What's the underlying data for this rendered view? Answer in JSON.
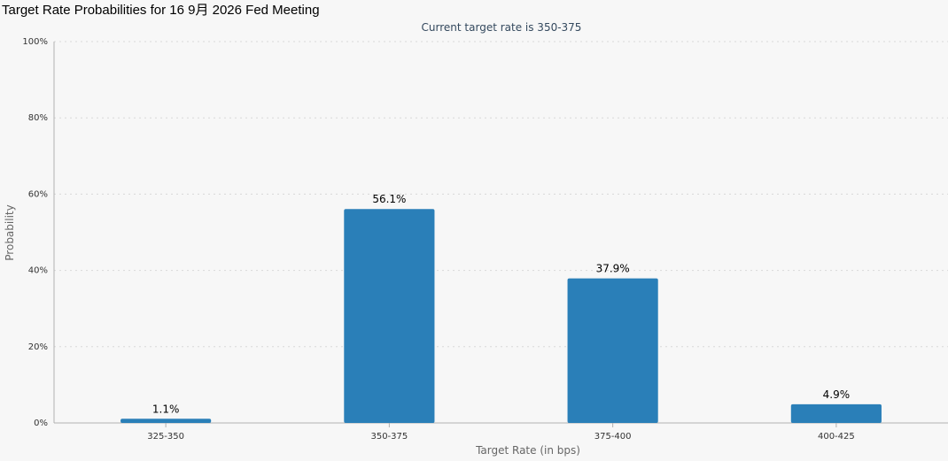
{
  "page": {
    "title": "Target Rate Probabilities for 16 9月 2026 Fed Meeting"
  },
  "chart_data": {
    "type": "bar",
    "title": "Target Rate Probabilities for 16 9月 2026 Fed Meeting",
    "subtitle": "Current target rate is 350-375",
    "categories": [
      "325-350",
      "350-375",
      "375-400",
      "400-425"
    ],
    "values": [
      1.1,
      56.1,
      37.9,
      4.9
    ],
    "data_labels": [
      "1.1%",
      "56.1%",
      "37.9%",
      "4.9%"
    ],
    "xlabel": "Target Rate (in bps)",
    "ylabel": "Probability",
    "ylim": [
      0,
      100
    ],
    "yticks": [
      0,
      20,
      40,
      60,
      80,
      100
    ],
    "ytick_labels": [
      "0%",
      "20%",
      "40%",
      "60%",
      "80%",
      "100%"
    ],
    "grid": true,
    "legend": "none",
    "colors": {
      "bar": "#2a7fb8",
      "grid": "#d8d8d8",
      "axis": "#b0b0b0",
      "background": "#f7f7f7"
    }
  }
}
